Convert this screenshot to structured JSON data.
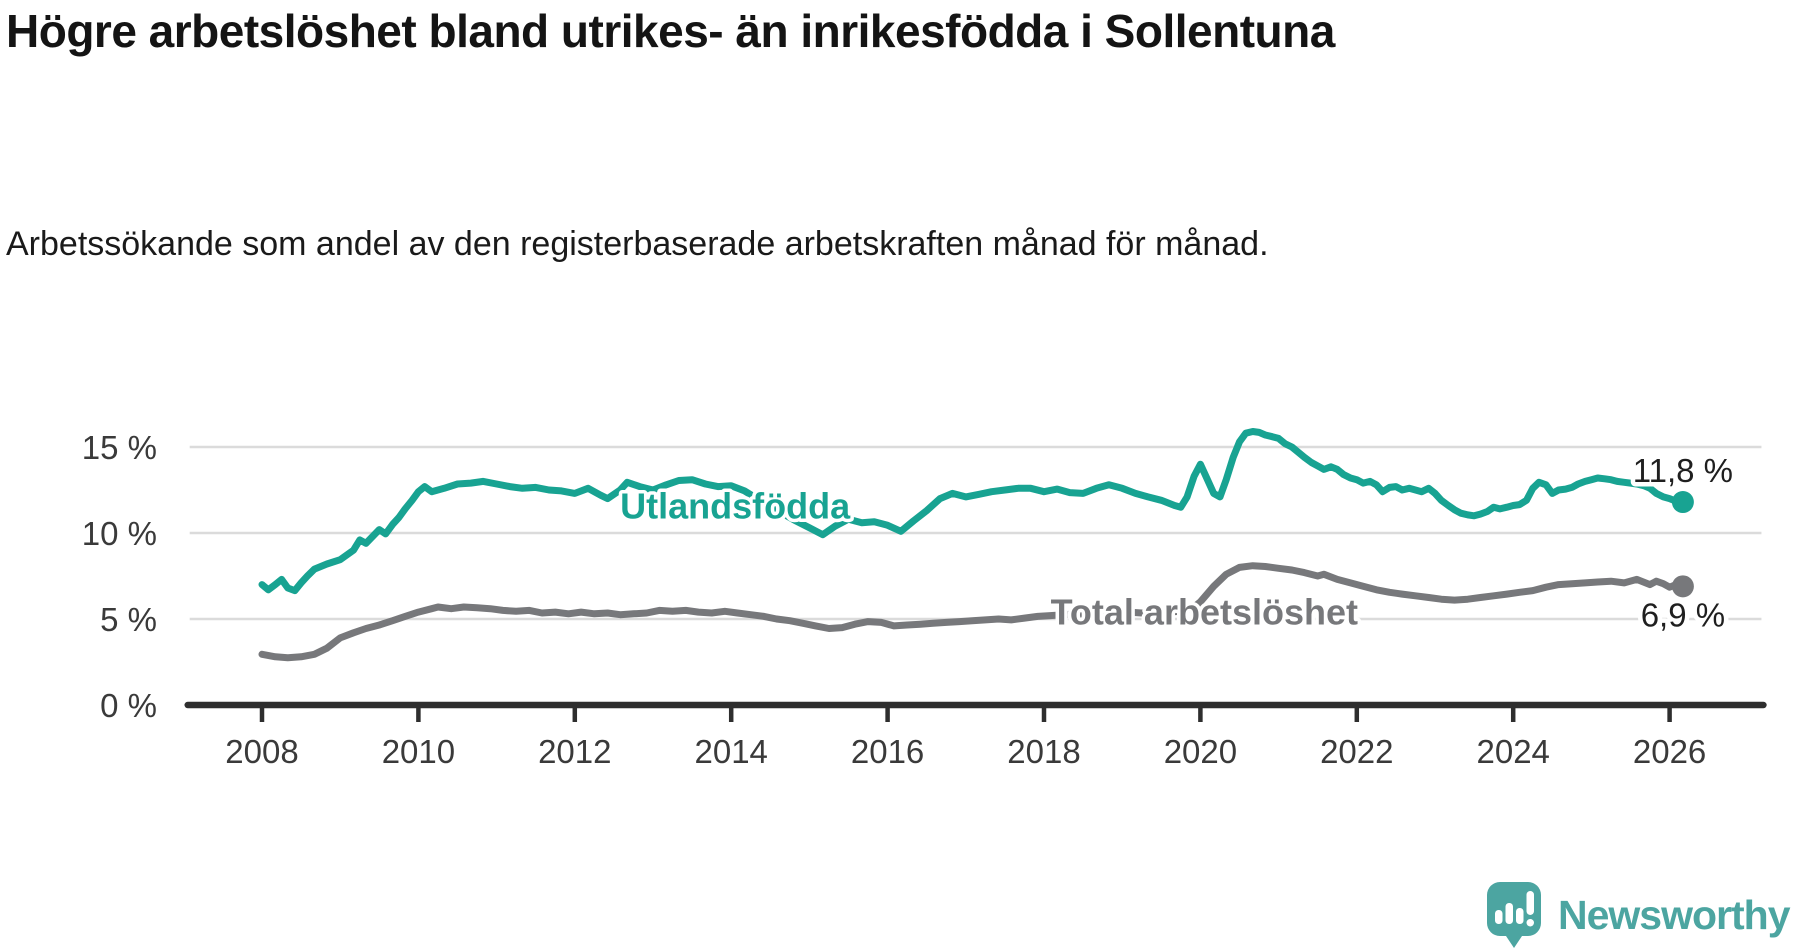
{
  "chart_data": {
    "type": "line",
    "title": "Högre arbetslöshet bland utrikes- än inrikesfödda i Sollentuna",
    "subtitle": "Arbetssökande som andel av den registerbaserade arbetskraften månad för månad.",
    "grid": "horizontal",
    "legend_position": "inline-labels",
    "xlim": [
      2007.05,
      2027.2
    ],
    "ylim": [
      0,
      16.5
    ],
    "x_ticks": [
      2008,
      2010,
      2012,
      2014,
      2016,
      2018,
      2020,
      2022,
      2024,
      2026
    ],
    "y_ticks": [
      {
        "label": "0 %",
        "value": 0
      },
      {
        "label": "5 %",
        "value": 5
      },
      {
        "label": "10 %",
        "value": 10
      },
      {
        "label": "15 %",
        "value": 15
      }
    ],
    "colors": {
      "grid": "#DBDBDB",
      "axis": "#2E2E2E",
      "axis_text": "#3A3A3A",
      "end_label_text": "#1F1F1F"
    },
    "series": [
      {
        "name": "Total arbetslöshet",
        "slug": "total-arbetsloshet",
        "color": "#77787B",
        "end_label": "6,9 %",
        "end_value": 6.9,
        "end_label_side": "below",
        "label_x": 2020.05,
        "label_y": 5.45,
        "points": [
          [
            2008.0,
            2.95
          ],
          [
            2008.17,
            2.8
          ],
          [
            2008.33,
            2.75
          ],
          [
            2008.5,
            2.8
          ],
          [
            2008.67,
            2.95
          ],
          [
            2008.83,
            3.3
          ],
          [
            2009.0,
            3.9
          ],
          [
            2009.17,
            4.2
          ],
          [
            2009.33,
            4.45
          ],
          [
            2009.5,
            4.65
          ],
          [
            2009.67,
            4.9
          ],
          [
            2009.83,
            5.15
          ],
          [
            2010.0,
            5.4
          ],
          [
            2010.17,
            5.6
          ],
          [
            2010.25,
            5.7
          ],
          [
            2010.42,
            5.6
          ],
          [
            2010.58,
            5.7
          ],
          [
            2010.75,
            5.65
          ],
          [
            2010.92,
            5.6
          ],
          [
            2011.08,
            5.5
          ],
          [
            2011.25,
            5.45
          ],
          [
            2011.42,
            5.5
          ],
          [
            2011.58,
            5.35
          ],
          [
            2011.75,
            5.4
          ],
          [
            2011.92,
            5.3
          ],
          [
            2012.08,
            5.4
          ],
          [
            2012.25,
            5.3
          ],
          [
            2012.42,
            5.35
          ],
          [
            2012.58,
            5.25
          ],
          [
            2012.75,
            5.3
          ],
          [
            2012.92,
            5.35
          ],
          [
            2013.08,
            5.5
          ],
          [
            2013.25,
            5.45
          ],
          [
            2013.42,
            5.5
          ],
          [
            2013.58,
            5.4
          ],
          [
            2013.75,
            5.35
          ],
          [
            2013.92,
            5.45
          ],
          [
            2014.08,
            5.35
          ],
          [
            2014.25,
            5.25
          ],
          [
            2014.42,
            5.15
          ],
          [
            2014.58,
            5.0
          ],
          [
            2014.75,
            4.9
          ],
          [
            2014.92,
            4.75
          ],
          [
            2015.08,
            4.6
          ],
          [
            2015.25,
            4.45
          ],
          [
            2015.42,
            4.5
          ],
          [
            2015.58,
            4.7
          ],
          [
            2015.75,
            4.85
          ],
          [
            2015.92,
            4.8
          ],
          [
            2016.08,
            4.6
          ],
          [
            2016.25,
            4.65
          ],
          [
            2016.42,
            4.7
          ],
          [
            2016.58,
            4.75
          ],
          [
            2016.75,
            4.8
          ],
          [
            2016.92,
            4.85
          ],
          [
            2017.08,
            4.9
          ],
          [
            2017.25,
            4.95
          ],
          [
            2017.42,
            5.0
          ],
          [
            2017.58,
            4.95
          ],
          [
            2017.75,
            5.05
          ],
          [
            2017.92,
            5.15
          ],
          [
            2018.08,
            5.2
          ],
          [
            2018.25,
            5.25
          ],
          [
            2018.42,
            5.3
          ],
          [
            2018.58,
            5.25
          ],
          [
            2018.75,
            5.3
          ],
          [
            2018.92,
            5.4
          ],
          [
            2019.08,
            5.4
          ],
          [
            2019.25,
            5.35
          ],
          [
            2019.42,
            5.3
          ],
          [
            2019.58,
            5.4
          ],
          [
            2019.75,
            5.45
          ],
          [
            2019.92,
            5.7
          ],
          [
            2020.0,
            6.0
          ],
          [
            2020.17,
            6.9
          ],
          [
            2020.33,
            7.6
          ],
          [
            2020.5,
            8.0
          ],
          [
            2020.67,
            8.1
          ],
          [
            2020.83,
            8.05
          ],
          [
            2021.0,
            7.95
          ],
          [
            2021.17,
            7.85
          ],
          [
            2021.33,
            7.7
          ],
          [
            2021.5,
            7.5
          ],
          [
            2021.58,
            7.6
          ],
          [
            2021.75,
            7.3
          ],
          [
            2021.92,
            7.1
          ],
          [
            2022.08,
            6.9
          ],
          [
            2022.25,
            6.7
          ],
          [
            2022.42,
            6.55
          ],
          [
            2022.58,
            6.45
          ],
          [
            2022.75,
            6.35
          ],
          [
            2022.92,
            6.25
          ],
          [
            2023.08,
            6.15
          ],
          [
            2023.25,
            6.1
          ],
          [
            2023.42,
            6.15
          ],
          [
            2023.58,
            6.25
          ],
          [
            2023.75,
            6.35
          ],
          [
            2023.92,
            6.45
          ],
          [
            2024.08,
            6.55
          ],
          [
            2024.25,
            6.65
          ],
          [
            2024.42,
            6.85
          ],
          [
            2024.58,
            7.0
          ],
          [
            2024.75,
            7.05
          ],
          [
            2024.92,
            7.1
          ],
          [
            2025.08,
            7.15
          ],
          [
            2025.25,
            7.2
          ],
          [
            2025.42,
            7.1
          ],
          [
            2025.58,
            7.3
          ],
          [
            2025.75,
            7.0
          ],
          [
            2025.83,
            7.2
          ],
          [
            2025.92,
            7.05
          ],
          [
            2026.0,
            6.85
          ],
          [
            2026.08,
            7.0
          ],
          [
            2026.17,
            6.9
          ]
        ]
      },
      {
        "name": "Utlandsfödda",
        "slug": "utlandsfodda",
        "color": "#18A392",
        "end_label": "11,8 %",
        "end_value": 11.8,
        "end_label_side": "above",
        "label_x": 2014.05,
        "label_y": 11.6,
        "points": [
          [
            2008.0,
            7.0
          ],
          [
            2008.08,
            6.7
          ],
          [
            2008.17,
            7.0
          ],
          [
            2008.25,
            7.3
          ],
          [
            2008.33,
            6.8
          ],
          [
            2008.42,
            6.65
          ],
          [
            2008.5,
            7.1
          ],
          [
            2008.58,
            7.5
          ],
          [
            2008.67,
            7.9
          ],
          [
            2008.83,
            8.2
          ],
          [
            2009.0,
            8.45
          ],
          [
            2009.17,
            9.0
          ],
          [
            2009.25,
            9.6
          ],
          [
            2009.33,
            9.4
          ],
          [
            2009.5,
            10.2
          ],
          [
            2009.58,
            9.95
          ],
          [
            2009.67,
            10.5
          ],
          [
            2009.75,
            10.9
          ],
          [
            2009.83,
            11.4
          ],
          [
            2009.92,
            11.9
          ],
          [
            2010.0,
            12.4
          ],
          [
            2010.08,
            12.7
          ],
          [
            2010.17,
            12.4
          ],
          [
            2010.33,
            12.6
          ],
          [
            2010.5,
            12.85
          ],
          [
            2010.67,
            12.9
          ],
          [
            2010.83,
            13.0
          ],
          [
            2011.0,
            12.85
          ],
          [
            2011.17,
            12.7
          ],
          [
            2011.33,
            12.6
          ],
          [
            2011.5,
            12.65
          ],
          [
            2011.67,
            12.5
          ],
          [
            2011.83,
            12.45
          ],
          [
            2012.0,
            12.3
          ],
          [
            2012.17,
            12.6
          ],
          [
            2012.33,
            12.2
          ],
          [
            2012.42,
            12.0
          ],
          [
            2012.58,
            12.5
          ],
          [
            2012.67,
            12.95
          ],
          [
            2012.83,
            12.7
          ],
          [
            2013.0,
            12.5
          ],
          [
            2013.17,
            12.8
          ],
          [
            2013.33,
            13.05
          ],
          [
            2013.5,
            13.1
          ],
          [
            2013.67,
            12.85
          ],
          [
            2013.83,
            12.7
          ],
          [
            2014.0,
            12.75
          ],
          [
            2014.17,
            12.45
          ],
          [
            2014.33,
            12.0
          ],
          [
            2014.5,
            11.5
          ],
          [
            2014.67,
            11.1
          ],
          [
            2014.83,
            10.7
          ],
          [
            2015.0,
            10.3
          ],
          [
            2015.17,
            9.9
          ],
          [
            2015.33,
            10.4
          ],
          [
            2015.5,
            10.8
          ],
          [
            2015.67,
            10.6
          ],
          [
            2015.83,
            10.65
          ],
          [
            2016.0,
            10.45
          ],
          [
            2016.17,
            10.1
          ],
          [
            2016.33,
            10.7
          ],
          [
            2016.5,
            11.3
          ],
          [
            2016.67,
            12.0
          ],
          [
            2016.83,
            12.3
          ],
          [
            2017.0,
            12.1
          ],
          [
            2017.17,
            12.25
          ],
          [
            2017.33,
            12.4
          ],
          [
            2017.5,
            12.5
          ],
          [
            2017.67,
            12.6
          ],
          [
            2017.83,
            12.6
          ],
          [
            2018.0,
            12.4
          ],
          [
            2018.17,
            12.55
          ],
          [
            2018.33,
            12.35
          ],
          [
            2018.5,
            12.3
          ],
          [
            2018.67,
            12.6
          ],
          [
            2018.83,
            12.8
          ],
          [
            2019.0,
            12.6
          ],
          [
            2019.17,
            12.3
          ],
          [
            2019.33,
            12.1
          ],
          [
            2019.5,
            11.9
          ],
          [
            2019.67,
            11.6
          ],
          [
            2019.75,
            11.5
          ],
          [
            2019.83,
            12.1
          ],
          [
            2019.92,
            13.3
          ],
          [
            2020.0,
            14.0
          ],
          [
            2020.08,
            13.2
          ],
          [
            2020.17,
            12.3
          ],
          [
            2020.25,
            12.1
          ],
          [
            2020.33,
            13.1
          ],
          [
            2020.42,
            14.4
          ],
          [
            2020.5,
            15.3
          ],
          [
            2020.58,
            15.8
          ],
          [
            2020.67,
            15.9
          ],
          [
            2020.75,
            15.85
          ],
          [
            2020.83,
            15.7
          ],
          [
            2020.92,
            15.6
          ],
          [
            2021.0,
            15.5
          ],
          [
            2021.08,
            15.2
          ],
          [
            2021.17,
            15.0
          ],
          [
            2021.25,
            14.7
          ],
          [
            2021.33,
            14.4
          ],
          [
            2021.42,
            14.1
          ],
          [
            2021.5,
            13.9
          ],
          [
            2021.58,
            13.7
          ],
          [
            2021.67,
            13.85
          ],
          [
            2021.75,
            13.7
          ],
          [
            2021.83,
            13.4
          ],
          [
            2021.92,
            13.2
          ],
          [
            2022.0,
            13.1
          ],
          [
            2022.08,
            12.9
          ],
          [
            2022.17,
            13.0
          ],
          [
            2022.25,
            12.8
          ],
          [
            2022.33,
            12.4
          ],
          [
            2022.42,
            12.65
          ],
          [
            2022.5,
            12.7
          ],
          [
            2022.58,
            12.5
          ],
          [
            2022.67,
            12.6
          ],
          [
            2022.83,
            12.4
          ],
          [
            2022.92,
            12.6
          ],
          [
            2023.0,
            12.3
          ],
          [
            2023.08,
            11.9
          ],
          [
            2023.17,
            11.6
          ],
          [
            2023.25,
            11.35
          ],
          [
            2023.33,
            11.15
          ],
          [
            2023.42,
            11.05
          ],
          [
            2023.5,
            11.0
          ],
          [
            2023.58,
            11.1
          ],
          [
            2023.67,
            11.25
          ],
          [
            2023.75,
            11.5
          ],
          [
            2023.83,
            11.4
          ],
          [
            2023.92,
            11.5
          ],
          [
            2024.0,
            11.6
          ],
          [
            2024.08,
            11.65
          ],
          [
            2024.17,
            11.9
          ],
          [
            2024.25,
            12.6
          ],
          [
            2024.33,
            12.95
          ],
          [
            2024.42,
            12.8
          ],
          [
            2024.5,
            12.3
          ],
          [
            2024.58,
            12.5
          ],
          [
            2024.67,
            12.55
          ],
          [
            2024.75,
            12.65
          ],
          [
            2024.83,
            12.85
          ],
          [
            2024.92,
            13.0
          ],
          [
            2025.0,
            13.1
          ],
          [
            2025.08,
            13.2
          ],
          [
            2025.17,
            13.15
          ],
          [
            2025.25,
            13.1
          ],
          [
            2025.33,
            13.0
          ],
          [
            2025.42,
            12.95
          ],
          [
            2025.5,
            12.9
          ],
          [
            2025.58,
            12.85
          ],
          [
            2025.67,
            12.75
          ],
          [
            2025.75,
            12.6
          ],
          [
            2025.83,
            12.3
          ],
          [
            2025.92,
            12.1
          ],
          [
            2026.0,
            12.0
          ],
          [
            2026.08,
            11.85
          ],
          [
            2026.17,
            11.8
          ]
        ]
      }
    ]
  },
  "branding": {
    "wordmark": "Newsworthy",
    "brand_color": "#4CA5A1",
    "icon": "speech-bubble-bar-chart-exclamation"
  }
}
